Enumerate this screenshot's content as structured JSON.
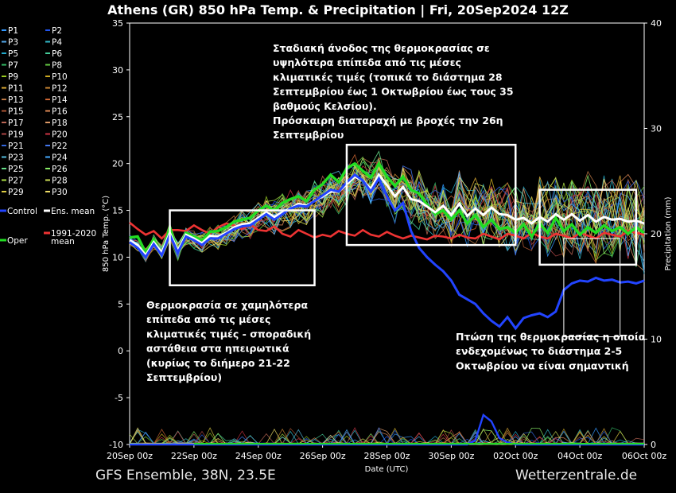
{
  "chart_data": {
    "type": "line",
    "title": "Athens  (GR)  850 hPa Temp. & Precipitation | Fri, 20Sep2024 12Z",
    "xlabel": "Date (UTC)",
    "ylabel_left": "850 hPa Temp. (°C)",
    "ylabel_right": "Precipitation (mm)",
    "x_ticks": [
      "20Sep 00z",
      "22Sep 00z",
      "24Sep 00z",
      "26Sep 00z",
      "28Sep 00z",
      "30Sep 00z",
      "02Oct 00z",
      "04Oct 00z",
      "06Oct 00z"
    ],
    "x_range_hours": [
      0,
      384
    ],
    "y_left_ticks": [
      35,
      30,
      25,
      20,
      15,
      10,
      5,
      0,
      -5,
      -10
    ],
    "y_left_range": [
      -10,
      35
    ],
    "y_right_ticks": [
      40,
      30,
      20,
      10,
      0
    ],
    "y_right_range": [
      0,
      40
    ],
    "grid": false,
    "legend_position": "left",
    "legend_members": [
      "P1",
      "P2",
      "P3",
      "P4",
      "P5",
      "P6",
      "P7",
      "P8",
      "P9",
      "P10",
      "P11",
      "P12",
      "P13",
      "P14",
      "P15",
      "P16",
      "P17",
      "P18",
      "P19",
      "P20",
      "P21",
      "P22",
      "P23",
      "P24",
      "P25",
      "P26",
      "P27",
      "P28",
      "P29",
      "P30"
    ],
    "legend_special": {
      "control": "Control",
      "ens_mean": "Ens. mean",
      "oper": "Oper",
      "climate": "1991-2020 mean"
    },
    "colors": {
      "control": "#2244ff",
      "ens_mean": "#ffffff",
      "oper": "#22dd22",
      "climate": "#ee3333",
      "members": [
        "#3399ff",
        "#2255ee",
        "#55aaee",
        "#33bbcc",
        "#22aacc",
        "#44cc99",
        "#33bb66",
        "#66cc44",
        "#99cc22",
        "#ccaa22",
        "#ddaa33",
        "#cc8833",
        "#bb7744",
        "#cc6633",
        "#aa5533",
        "#dd8855",
        "#bb6655",
        "#dd9966",
        "#aa4444",
        "#cc3344",
        "#3366dd",
        "#4477ee",
        "#55bbdd",
        "#44aaff",
        "#66dd88",
        "#88ee66",
        "#aadd44",
        "#ccdd55",
        "#ddcc44",
        "#eedd66"
      ]
    },
    "series": [
      {
        "name": "Ens. mean",
        "x_hours": [
          0,
          6,
          12,
          18,
          24,
          30,
          36,
          42,
          48,
          54,
          60,
          66,
          72,
          78,
          84,
          90,
          96,
          102,
          108,
          114,
          120,
          126,
          132,
          138,
          144,
          150,
          156,
          162,
          168,
          174,
          180,
          186,
          192,
          198,
          204,
          210,
          216,
          222,
          228,
          234,
          240,
          246,
          252,
          258,
          264,
          270,
          276,
          282,
          288,
          294,
          300,
          306,
          312,
          318,
          324,
          330,
          336,
          342,
          348,
          354,
          360,
          366,
          372,
          378,
          384
        ],
        "values": [
          11.8,
          11.3,
          10.2,
          11.6,
          10.5,
          12.6,
          10.7,
          12.4,
          12.0,
          11.5,
          12.3,
          12.2,
          12.6,
          13.2,
          13.5,
          13.6,
          14.2,
          14.8,
          14.3,
          14.8,
          15.2,
          15.7,
          15.5,
          16.0,
          16.5,
          17.0,
          17.0,
          17.8,
          18.6,
          18.2,
          17.3,
          18.8,
          17.7,
          16.5,
          17.5,
          16.2,
          16.0,
          15.4,
          14.8,
          15.5,
          14.5,
          15.7,
          14.4,
          15.2,
          14.5,
          15.3,
          14.6,
          14.5,
          14.0,
          14.2,
          13.6,
          14.3,
          13.8,
          14.6,
          14.0,
          14.6,
          13.9,
          14.5,
          13.8,
          14.3,
          14.0,
          14.1,
          13.8,
          13.9,
          13.6
        ]
      },
      {
        "name": "Oper",
        "x_hours": [
          0,
          6,
          12,
          18,
          24,
          30,
          36,
          42,
          48,
          54,
          60,
          66,
          72,
          78,
          84,
          90,
          96,
          102,
          108,
          114,
          120,
          126,
          132,
          138,
          144,
          150,
          156,
          162,
          168,
          174,
          180,
          186,
          192,
          198,
          204,
          210,
          216,
          222,
          228,
          234,
          240,
          246,
          252,
          258,
          264,
          270,
          276,
          282,
          288,
          294,
          300,
          306,
          312,
          318,
          324,
          330,
          336,
          342,
          348,
          354,
          360,
          366,
          372,
          378,
          384
        ],
        "values": [
          12.1,
          12.2,
          10.5,
          11.9,
          10.3,
          13.2,
          10.6,
          12.6,
          12.2,
          11.8,
          12.7,
          12.8,
          13.2,
          13.8,
          14.0,
          14.2,
          15.0,
          15.5,
          15.0,
          15.8,
          16.2,
          16.5,
          16.0,
          17.2,
          17.8,
          18.8,
          18.0,
          19.5,
          20.0,
          19.2,
          18.5,
          20.0,
          18.6,
          17.6,
          18.6,
          17.2,
          16.8,
          15.6,
          14.6,
          15.0,
          14.0,
          15.0,
          13.6,
          14.5,
          13.2,
          14.0,
          13.0,
          13.2,
          12.6,
          13.5,
          12.2,
          13.6,
          12.6,
          14.2,
          12.8,
          13.5,
          12.4,
          13.2,
          12.6,
          13.4,
          12.8,
          13.2,
          12.5,
          13.2,
          12.6
        ]
      },
      {
        "name": "Control",
        "x_hours": [
          0,
          6,
          12,
          18,
          24,
          30,
          36,
          42,
          48,
          54,
          60,
          66,
          72,
          78,
          84,
          90,
          96,
          102,
          108,
          114,
          120,
          126,
          132,
          138,
          144,
          150,
          156,
          162,
          168,
          174,
          180,
          186,
          192,
          198,
          204,
          210,
          216,
          222,
          228,
          234,
          240,
          246,
          252,
          258,
          264,
          270,
          276,
          282,
          288,
          294,
          300,
          306,
          312,
          318,
          324,
          330,
          336,
          342,
          348,
          354,
          360,
          366,
          372,
          378,
          384
        ],
        "values": [
          11.6,
          11.0,
          10.0,
          11.4,
          10.2,
          12.4,
          10.5,
          12.2,
          11.8,
          11.3,
          12.0,
          12.0,
          12.5,
          13.0,
          13.3,
          13.4,
          14.0,
          14.6,
          14.0,
          14.6,
          15.2,
          15.5,
          15.4,
          16.0,
          16.6,
          17.2,
          17.0,
          18.0,
          18.8,
          18.2,
          17.0,
          18.4,
          16.5,
          15.0,
          15.8,
          12.8,
          11.0,
          10.0,
          9.2,
          8.5,
          7.5,
          6.0,
          5.5,
          5.0,
          4.0,
          3.2,
          2.6,
          3.6,
          2.4,
          3.5,
          3.8,
          4.0,
          3.6,
          4.2,
          6.5,
          7.2,
          7.5,
          7.4,
          7.8,
          7.5,
          7.6,
          7.3,
          7.4,
          7.2,
          7.5
        ]
      },
      {
        "name": "1991-2020 mean",
        "x_hours": [
          0,
          6,
          12,
          18,
          24,
          30,
          36,
          42,
          48,
          54,
          60,
          66,
          72,
          78,
          84,
          90,
          96,
          102,
          108,
          114,
          120,
          126,
          132,
          138,
          144,
          150,
          156,
          162,
          168,
          174,
          180,
          186,
          192,
          198,
          204,
          210,
          216,
          222,
          228,
          234,
          240,
          246,
          252,
          258,
          264,
          270,
          276,
          282,
          288,
          294,
          300,
          306,
          312,
          318,
          324,
          330,
          336,
          342,
          348,
          354,
          360,
          366,
          372,
          378,
          384
        ],
        "values": [
          13.7,
          13.0,
          12.4,
          12.8,
          12.0,
          12.9,
          12.9,
          12.8,
          13.4,
          12.9,
          12.5,
          13.2,
          13.6,
          13.4,
          13.0,
          13.5,
          12.9,
          12.8,
          13.3,
          12.5,
          12.2,
          12.9,
          12.5,
          12.1,
          12.4,
          12.2,
          12.8,
          12.5,
          12.3,
          12.9,
          12.4,
          12.2,
          12.7,
          12.3,
          12.0,
          12.3,
          12.1,
          11.9,
          12.3,
          12.2,
          12.0,
          12.4,
          12.1,
          12.0,
          12.5,
          12.2,
          11.9,
          12.5,
          12.3,
          12.0,
          12.6,
          12.2,
          12.0,
          12.5,
          12.3,
          12.0,
          12.6,
          12.3,
          12.0,
          12.6,
          12.4,
          12.2,
          12.8,
          12.6,
          12.4
        ]
      },
      {
        "name": "Control precipitation",
        "axis": "right",
        "x_hours": [
          0,
          252,
          258,
          264,
          270,
          276,
          282,
          288,
          294,
          384
        ],
        "values": [
          0,
          0,
          0.4,
          2.8,
          2.2,
          0.6,
          0.2,
          0,
          0,
          0
        ]
      }
    ],
    "annotations": [
      {
        "text": "Σταδιακή άνοδος της θερμοκρασίας σε υψηλότερα επίπεδα από τις μέσες κλιματικές τιμές (τοπικά το διάστημα 28 Σεπτεμβρίου έως 1 Οκτωβρίου έως τους 35 βαθμούς Κελσίου).",
        "lines": [
          "Σταδιακή άνοδος της θερμοκρασίας σε",
          "υψηλότερα επίπεδα από τις μέσες",
          "κλιματικές τιμές (τοπικά το διάστημα 28",
          "Σεπτεμβρίου έως 1 Οκτωβρίου έως τους 35",
          "βαθμούς Κελσίου)."
        ]
      },
      {
        "text": "Πρόσκαιρη διαταραχή με βροχές την 26η Σεπτεμβρίου",
        "lines": [
          "Πρόσκαιρη διαταραχή με βροχές την 26η",
          "Σεπτεμβρίου"
        ]
      },
      {
        "text": "Θερμοκρασία σε χαμηλότερα επίπεδα από τις μέσες κλιματικές τιμές - σποραδική αστάθεια στα ηπειρωτικά (κυρίως το διήμερο 21-22 Σεπτεμβρίου)",
        "lines": [
          "Θερμοκρασία σε χαμηλότερα",
          "επίπεδα από τις μέσες",
          "κλιματικές τιμές - σποραδική",
          "αστάθεια στα ηπειρωτικά",
          "(κυρίως το διήμερο 21-22",
          "Σεπτεμβρίου)"
        ]
      },
      {
        "text": "Πτώση της θερμοκρασίας η οποία ενδεχομένως το διάστημα 2-5 Οκτωβρίου να είναι σημαντική",
        "lines": [
          "Πτώση της θερμοκρασίας η οποία",
          "ενδεχομένως το διάστημα 2-5",
          "Οκτωβρίου να είναι σημαντική"
        ]
      }
    ],
    "highlight_boxes": [
      {
        "x_hours": [
          30,
          138
        ],
        "y": [
          7.0,
          15.0
        ],
        "color": "#ffffff"
      },
      {
        "x_hours": [
          162,
          288
        ],
        "y": [
          11.3,
          22.0
        ],
        "color": "#ffffff"
      },
      {
        "x_hours": [
          306,
          378
        ],
        "y": [
          9.2,
          17.2
        ],
        "color": "#ffffff"
      },
      {
        "x_hours": [
          324,
          366
        ],
        "y": [
          1.5,
          12.0
        ],
        "color": "#ffffff"
      }
    ]
  },
  "footer": {
    "left": "GFS Ensemble, 38N, 23.5E",
    "right": "Wetterzentrale.de"
  }
}
